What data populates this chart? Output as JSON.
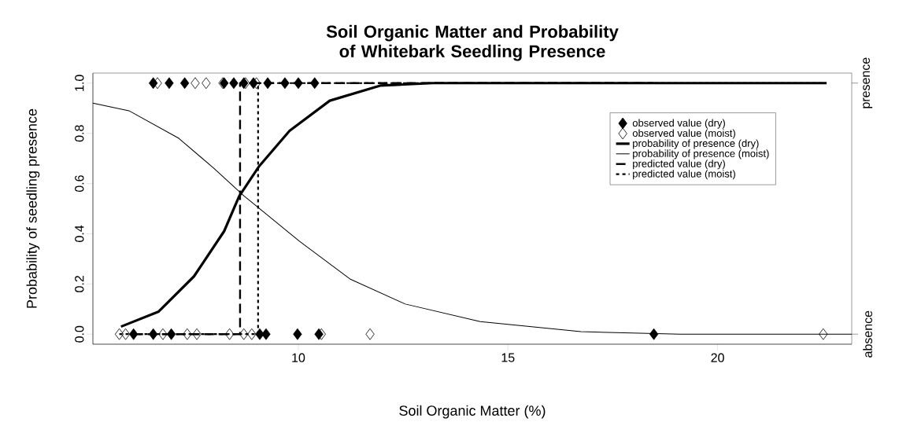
{
  "chart_data": {
    "type": "line",
    "title": "Soil Organic Matter and Probability of Whitebark Seedling Presence",
    "xlabel": "Soil Organic Matter (%)",
    "ylabel": "Probability of seedling presence",
    "xlim": [
      5.1,
      23.2
    ],
    "ylim": [
      -0.04,
      1.04
    ],
    "xticks": [
      10,
      15,
      20
    ],
    "yticks": [
      {
        "value": 0,
        "label": "0.0"
      },
      {
        "value": 0.2,
        "label": "0.2"
      },
      {
        "value": 0.4,
        "label": "0.4"
      },
      {
        "value": 0.6,
        "label": "0.6"
      },
      {
        "value": 0.8,
        "label": "0.8"
      },
      {
        "value": 1,
        "label": "1.0"
      }
    ],
    "annotations": [
      "presence",
      "absence"
    ],
    "legend": "top right",
    "series": [
      {
        "name": "observed value (dry)",
        "type": "scatter",
        "marker": "diamond",
        "color": "#000000",
        "x": [
          6.54,
          6.92,
          7.29,
          8.23,
          8.46,
          8.7,
          8.93,
          9.27,
          9.68,
          10.0,
          10.39,
          6.07,
          6.54,
          6.97,
          9.08,
          9.23,
          9.98,
          10.49,
          18.48
        ],
        "values": [
          1,
          1,
          1,
          1,
          1,
          1,
          1,
          1,
          1,
          1,
          1,
          0,
          0,
          0,
          0,
          0,
          0,
          0,
          0
        ]
      },
      {
        "name": "observed value (moist)",
        "type": "scatter",
        "marker": "diamond",
        "color": "#000000",
        "x": [
          6.64,
          7.54,
          7.8,
          8.2,
          8.74,
          9.0,
          5.73,
          5.88,
          6.77,
          7.35,
          7.58,
          8.36,
          8.7,
          8.89,
          10.55,
          11.71,
          22.52
        ],
        "values": [
          1,
          1,
          1,
          1,
          1,
          1,
          0,
          0,
          0,
          0,
          0,
          0,
          0,
          0,
          0,
          0,
          0
        ]
      },
      {
        "name": "probability of presence (dry)",
        "line_style": "solid",
        "color": "#000000",
        "x": [
          5.77,
          6.67,
          7.51,
          8.23,
          8.59,
          9.07,
          9.79,
          10.75,
          11.95,
          13.2,
          22.6
        ],
        "values": [
          0.03,
          0.09,
          0.23,
          0.41,
          0.55,
          0.67,
          0.81,
          0.93,
          0.99,
          1.0,
          1.0
        ]
      },
      {
        "name": "probability of presence (moist)",
        "line_style": "solid",
        "color": "#000000",
        "x": [
          5.1,
          5.96,
          7.15,
          7.99,
          8.71,
          10.03,
          11.23,
          12.55,
          14.34,
          16.74,
          19.1,
          23.2
        ],
        "values": [
          0.92,
          0.89,
          0.78,
          0.66,
          0.55,
          0.37,
          0.22,
          0.12,
          0.05,
          0.01,
          0.0,
          0.0
        ]
      },
      {
        "name": "predicted value (dry)",
        "line_style": "dashed",
        "color": "#000000",
        "x": [
          6.07,
          8.61,
          8.61,
          18.48
        ],
        "values": [
          0,
          0,
          1,
          1
        ]
      },
      {
        "name": "predicted value (moist)",
        "line_style": "dotted",
        "color": "#000000",
        "x": [
          5.73,
          9.04,
          9.04,
          22.52
        ],
        "values": [
          0,
          0,
          1,
          1
        ]
      }
    ]
  }
}
